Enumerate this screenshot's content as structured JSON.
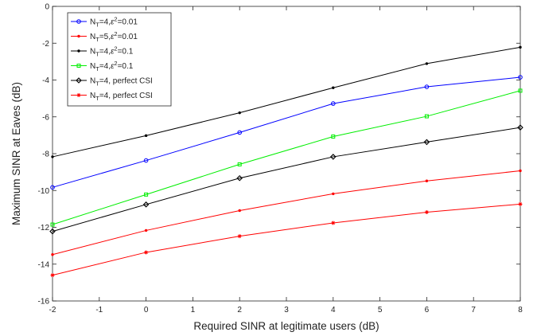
{
  "chart_data": {
    "type": "line",
    "title": "",
    "xlabel": "Required SINR at legitimate users (dB)",
    "ylabel": "Maximum SINR at Eaves (dB)",
    "xlim": [
      -2,
      8
    ],
    "ylim": [
      -16,
      0
    ],
    "xticks": [
      "-2",
      "-1",
      "0",
      "1",
      "2",
      "3",
      "4",
      "5",
      "6",
      "7",
      "8"
    ],
    "yticks": [
      "-16",
      "-14",
      "-12",
      "-10",
      "-8",
      "-6",
      "-4",
      "-2",
      "0"
    ],
    "grid": false,
    "legend_position": "top-left",
    "x": [
      -2,
      0,
      2,
      4,
      6,
      8
    ],
    "series": [
      {
        "name": "N_T=4,ε²=0.01",
        "color": "#0000ff",
        "marker": "circle",
        "values": [
          -9.83,
          -8.37,
          -6.85,
          -5.28,
          -4.37,
          -3.85
        ]
      },
      {
        "name": "N_T=5,ε²=0.01",
        "color": "#ff0000",
        "marker": "dot",
        "values": [
          -13.48,
          -12.17,
          -11.09,
          -10.18,
          -9.48,
          -8.93
        ]
      },
      {
        "name": "N_T=4,ε²=0.1",
        "color": "#000000",
        "marker": "dot",
        "values": [
          -8.17,
          -7.02,
          -5.78,
          -4.42,
          -3.11,
          -2.22
        ]
      },
      {
        "name": "N_T=4,ε²=0.1",
        "color": "#00ee00",
        "marker": "square",
        "values": [
          -11.85,
          -10.22,
          -8.58,
          -7.07,
          -5.97,
          -4.58
        ]
      },
      {
        "name": "N_T=4, perfect CSI",
        "color": "#000000",
        "marker": "diamond",
        "values": [
          -12.22,
          -10.76,
          -9.33,
          -8.17,
          -7.37,
          -6.58
        ]
      },
      {
        "name": "N_T=4, perfect CSI",
        "color": "#ff0000",
        "marker": "star",
        "values": [
          -14.6,
          -13.36,
          -12.48,
          -11.76,
          -11.18,
          -10.74
        ]
      }
    ],
    "legend": [
      {
        "sub": "T",
        "main": "N",
        "rest": "=4,",
        "eps": "ε",
        "sup": "2",
        "tail": "=0.01"
      },
      {
        "sub": "T",
        "main": "N",
        "rest": "=5,",
        "eps": "ε",
        "sup": "2",
        "tail": "=0.01"
      },
      {
        "sub": "T",
        "main": "N",
        "rest": "=4,",
        "eps": "ε",
        "sup": "2",
        "tail": "=0.1"
      },
      {
        "sub": "T",
        "main": "N",
        "rest": "=4,",
        "eps": "ε",
        "sup": "2",
        "tail": "=0.1"
      },
      {
        "sub": "T",
        "main": "N",
        "rest": "=4, perfect CSI",
        "eps": "",
        "sup": "",
        "tail": ""
      },
      {
        "sub": "T",
        "main": "N",
        "rest": "=4, perfect CSI",
        "eps": "",
        "sup": "",
        "tail": ""
      }
    ]
  }
}
